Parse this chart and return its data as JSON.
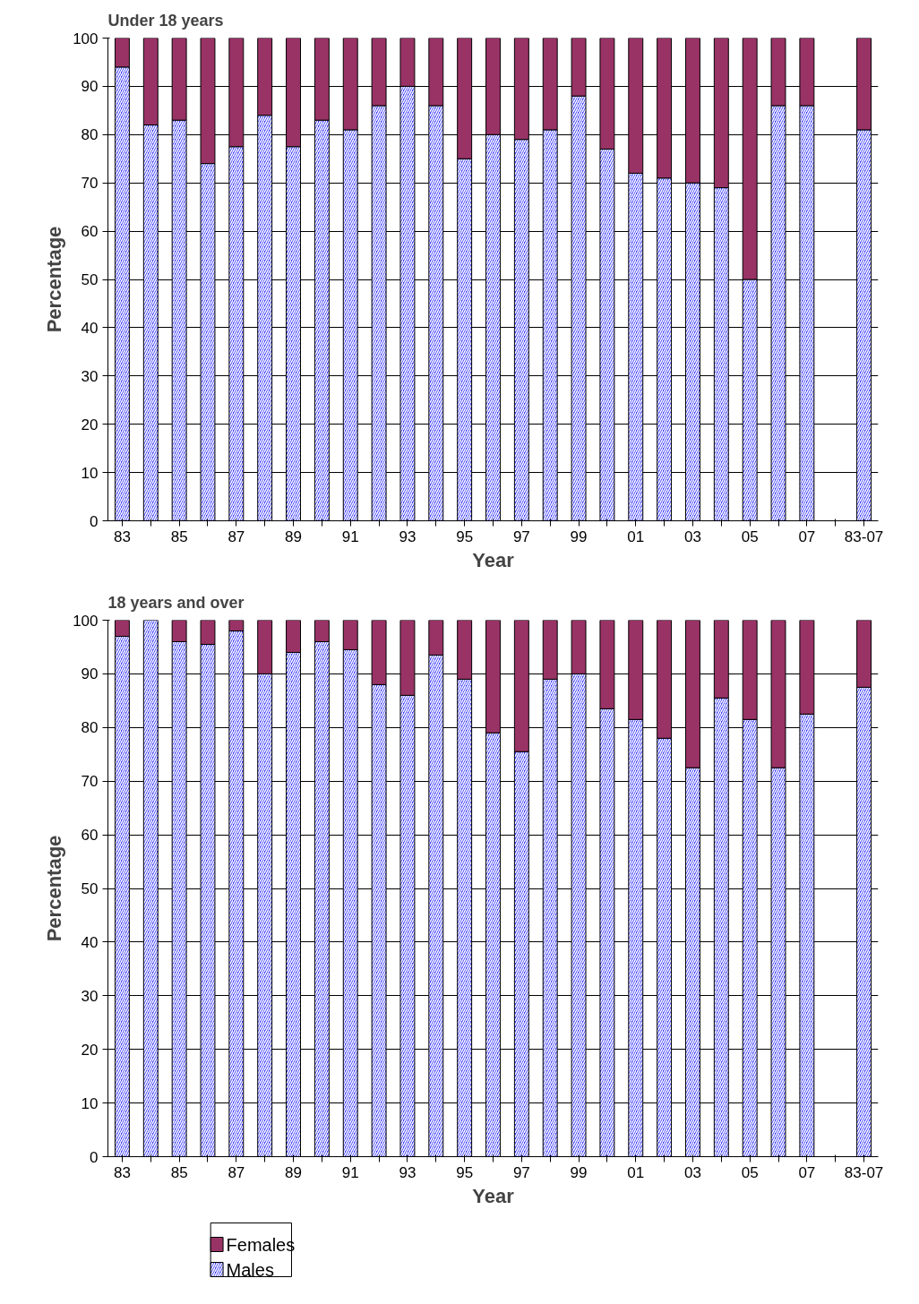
{
  "chart_data": [
    {
      "type": "bar",
      "title": "Under 18 years",
      "xlabel": "Year",
      "ylabel": "Percentage",
      "stacked": true,
      "grid": "y",
      "legend": false,
      "categories": [
        "83",
        null,
        "85",
        null,
        "87",
        null,
        "89",
        null,
        "91",
        null,
        "93",
        null,
        "95",
        null,
        "97",
        null,
        "99",
        null,
        "01",
        null,
        "03",
        null,
        "05",
        null,
        "07",
        null,
        "83-07"
      ],
      "ylim": [
        0,
        100
      ],
      "yticks": [
        0,
        10,
        20,
        30,
        40,
        50,
        60,
        70,
        80,
        90,
        100
      ],
      "series": [
        {
          "color": "#3333ff",
          "values": [
            94,
            82,
            83,
            74,
            77.5,
            84,
            77.5,
            83,
            81,
            86,
            90,
            86,
            75,
            80,
            79,
            81,
            88,
            77,
            72,
            71,
            70,
            69,
            50,
            86,
            86,
            null,
            81
          ]
        },
        {
          "color": "#993366",
          "values": [
            6,
            18,
            17,
            26,
            22.5,
            16,
            22.5,
            17,
            19,
            14,
            10,
            14,
            25,
            20,
            21,
            19,
            12,
            23,
            28,
            29,
            30,
            31,
            50,
            14,
            14,
            null,
            19
          ]
        }
      ]
    },
    {
      "type": "bar",
      "title": "18 years and over",
      "xlabel": "Year",
      "ylabel": "Percentage",
      "stacked": true,
      "grid": "y",
      "legend": "bottom left",
      "categories": [
        "83",
        null,
        "85",
        null,
        "87",
        null,
        "89",
        null,
        "91",
        null,
        "93",
        null,
        "95",
        null,
        "97",
        null,
        "99",
        null,
        "01",
        null,
        "03",
        null,
        "05",
        null,
        "07",
        null,
        "83-07"
      ],
      "ylim": [
        0,
        100
      ],
      "yticks": [
        0,
        10,
        20,
        30,
        40,
        50,
        60,
        70,
        80,
        90,
        100
      ],
      "series": [
        {
          "name": "Males",
          "color": "#3333ff",
          "values": [
            97,
            100,
            96,
            95.5,
            98,
            90,
            94,
            96,
            94.5,
            88,
            86,
            93.5,
            89,
            79,
            75.5,
            89,
            90,
            83.5,
            81.5,
            78,
            72.5,
            85.5,
            81.5,
            72.5,
            82.5,
            null,
            87.5
          ]
        },
        {
          "name": "Females",
          "color": "#993366",
          "values": [
            3,
            0,
            4,
            4.5,
            2,
            10,
            6,
            4,
            5.5,
            12,
            14,
            6.5,
            11,
            21,
            24.5,
            11,
            10,
            16.5,
            18.5,
            22,
            27.5,
            14.5,
            18.5,
            27.5,
            17.5,
            null,
            12.5
          ]
        }
      ]
    }
  ]
}
